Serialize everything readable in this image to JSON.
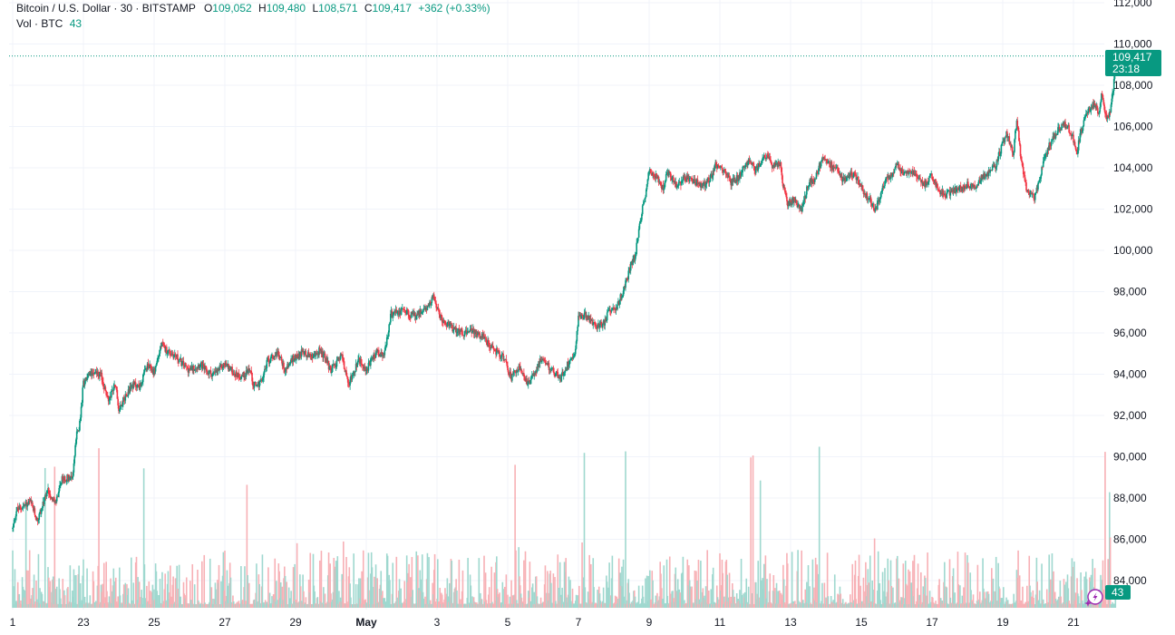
{
  "legend": {
    "title": "Bitcoin / U.S. Dollar · 30 · BITSTAMP",
    "o_label": "O",
    "o_value": "109,052",
    "h_label": "H",
    "h_value": "109,480",
    "l_label": "L",
    "l_value": "108,571",
    "c_label": "C",
    "c_value": "109,417",
    "change": "+362 (+0.33%)",
    "vol_label": "Vol · BTC",
    "vol_value": "43"
  },
  "price_tag": {
    "price": "109,417",
    "countdown": "23:18"
  },
  "volume_tag": "43",
  "colors": {
    "up": "#089981",
    "down": "#f23645",
    "vol_up": "#9fd8cf",
    "vol_down": "#f7b0b5",
    "grid": "#f0f3fa",
    "text": "#131722",
    "ai_icon": "#9c27b0"
  },
  "icons": {
    "ai_assistant": "sparkle-lightning-icon"
  },
  "chart_data": {
    "type": "candlestick",
    "symbol": "Bitcoin / U.S. Dollar",
    "interval": "30",
    "exchange": "BITSTAMP",
    "ylim": [
      82500,
      112000
    ],
    "y_ticks": [
      "112,000",
      "110,000",
      "108,000",
      "106,000",
      "104,000",
      "102,000",
      "100,000",
      "98,000",
      "96,000",
      "94,000",
      "92,000",
      "90,000",
      "88,000",
      "86,000",
      "84,000"
    ],
    "y_tick_values": [
      112000,
      110000,
      108000,
      106000,
      104000,
      102000,
      100000,
      98000,
      96000,
      94000,
      92000,
      90000,
      88000,
      86000,
      84000
    ],
    "x_ticks": [
      "1",
      "23",
      "25",
      "27",
      "29",
      "May",
      "3",
      "5",
      "7",
      "9",
      "11",
      "13",
      "15",
      "17",
      "19",
      "21"
    ],
    "x_tick_days": [
      0,
      2,
      4,
      6,
      8,
      10,
      12,
      14,
      16,
      18,
      20,
      22,
      24,
      26,
      28,
      30
    ],
    "x_days_range": [
      -0.05,
      30.4
    ],
    "bold_ticks": [
      "May"
    ],
    "grid": true,
    "last_price": 109417,
    "price_path": [
      [
        0.0,
        86500
      ],
      [
        0.1,
        87400
      ],
      [
        0.5,
        87800
      ],
      [
        0.7,
        86900
      ],
      [
        1.0,
        88400
      ],
      [
        1.2,
        87700
      ],
      [
        1.4,
        88900
      ],
      [
        1.7,
        89100
      ],
      [
        1.8,
        91000
      ],
      [
        1.9,
        91600
      ],
      [
        2.0,
        93600
      ],
      [
        2.3,
        94200
      ],
      [
        2.5,
        93900
      ],
      [
        2.7,
        92700
      ],
      [
        2.9,
        93600
      ],
      [
        3.0,
        92300
      ],
      [
        3.2,
        93000
      ],
      [
        3.4,
        93500
      ],
      [
        3.6,
        93400
      ],
      [
        3.8,
        94400
      ],
      [
        4.0,
        94100
      ],
      [
        4.2,
        95400
      ],
      [
        4.4,
        95100
      ],
      [
        4.6,
        94900
      ],
      [
        4.8,
        94500
      ],
      [
        5.0,
        94200
      ],
      [
        5.3,
        94500
      ],
      [
        5.5,
        94100
      ],
      [
        5.7,
        94000
      ],
      [
        6.0,
        94500
      ],
      [
        6.3,
        94000
      ],
      [
        6.5,
        93900
      ],
      [
        6.7,
        94300
      ],
      [
        6.8,
        93500
      ],
      [
        7.0,
        93500
      ],
      [
        7.2,
        94600
      ],
      [
        7.5,
        95100
      ],
      [
        7.7,
        94200
      ],
      [
        7.9,
        94700
      ],
      [
        8.2,
        95100
      ],
      [
        8.5,
        94800
      ],
      [
        8.7,
        95200
      ],
      [
        9.0,
        94200
      ],
      [
        9.3,
        94900
      ],
      [
        9.5,
        93500
      ],
      [
        9.8,
        94700
      ],
      [
        10.0,
        94200
      ],
      [
        10.3,
        95100
      ],
      [
        10.5,
        94800
      ],
      [
        10.7,
        96900
      ],
      [
        11.0,
        97100
      ],
      [
        11.4,
        96800
      ],
      [
        11.7,
        97200
      ],
      [
        11.9,
        97800
      ],
      [
        12.0,
        97100
      ],
      [
        12.2,
        96500
      ],
      [
        12.5,
        96200
      ],
      [
        12.8,
        96000
      ],
      [
        13.0,
        96100
      ],
      [
        13.3,
        95800
      ],
      [
        13.6,
        95200
      ],
      [
        13.9,
        94800
      ],
      [
        14.0,
        94200
      ],
      [
        14.1,
        93800
      ],
      [
        14.3,
        94300
      ],
      [
        14.6,
        93500
      ],
      [
        14.9,
        94600
      ],
      [
        15.1,
        94500
      ],
      [
        15.3,
        94100
      ],
      [
        15.5,
        93800
      ],
      [
        15.7,
        94500
      ],
      [
        15.9,
        95100
      ],
      [
        16.0,
        96800
      ],
      [
        16.2,
        96900
      ],
      [
        16.5,
        96300
      ],
      [
        16.7,
        96400
      ],
      [
        16.9,
        97200
      ],
      [
        17.1,
        97300
      ],
      [
        17.3,
        98200
      ],
      [
        17.5,
        99400
      ],
      [
        17.6,
        99700
      ],
      [
        17.8,
        101900
      ],
      [
        17.9,
        102800
      ],
      [
        18.0,
        103900
      ],
      [
        18.2,
        103600
      ],
      [
        18.4,
        103000
      ],
      [
        18.5,
        103900
      ],
      [
        18.8,
        103100
      ],
      [
        19.0,
        103500
      ],
      [
        19.3,
        103400
      ],
      [
        19.5,
        103100
      ],
      [
        19.7,
        103400
      ],
      [
        19.9,
        104200
      ],
      [
        20.1,
        103900
      ],
      [
        20.3,
        103300
      ],
      [
        20.5,
        103500
      ],
      [
        20.8,
        104400
      ],
      [
        21.0,
        103900
      ],
      [
        21.3,
        104600
      ],
      [
        21.5,
        104100
      ],
      [
        21.7,
        104200
      ],
      [
        21.8,
        103000
      ],
      [
        21.9,
        102300
      ],
      [
        22.1,
        102400
      ],
      [
        22.3,
        101900
      ],
      [
        22.5,
        103200
      ],
      [
        22.7,
        103500
      ],
      [
        22.9,
        104500
      ],
      [
        23.1,
        104200
      ],
      [
        23.3,
        103900
      ],
      [
        23.5,
        103400
      ],
      [
        23.7,
        103800
      ],
      [
        23.9,
        103400
      ],
      [
        24.1,
        102700
      ],
      [
        24.3,
        102300
      ],
      [
        24.4,
        101900
      ],
      [
        24.6,
        103100
      ],
      [
        24.8,
        103600
      ],
      [
        25.0,
        104100
      ],
      [
        25.2,
        103700
      ],
      [
        25.4,
        103900
      ],
      [
        25.6,
        103400
      ],
      [
        25.8,
        103200
      ],
      [
        26.0,
        103600
      ],
      [
        26.2,
        102900
      ],
      [
        26.4,
        102700
      ],
      [
        26.6,
        102900
      ],
      [
        26.8,
        103000
      ],
      [
        27.0,
        103200
      ],
      [
        27.2,
        103100
      ],
      [
        27.4,
        103500
      ],
      [
        27.6,
        103800
      ],
      [
        27.8,
        104100
      ],
      [
        28.0,
        105200
      ],
      [
        28.1,
        105700
      ],
      [
        28.3,
        104700
      ],
      [
        28.4,
        106500
      ],
      [
        28.5,
        104600
      ],
      [
        28.6,
        103600
      ],
      [
        28.7,
        102800
      ],
      [
        28.9,
        102500
      ],
      [
        29.0,
        103200
      ],
      [
        29.2,
        104600
      ],
      [
        29.4,
        105400
      ],
      [
        29.6,
        105900
      ],
      [
        29.8,
        106100
      ],
      [
        30.0,
        105400
      ],
      [
        30.1,
        104700
      ],
      [
        30.2,
        105700
      ],
      [
        30.4,
        106700
      ],
      [
        30.6,
        107200
      ],
      [
        30.7,
        106500
      ],
      [
        30.8,
        107600
      ],
      [
        30.9,
        106600
      ],
      [
        31.0,
        106400
      ],
      [
        31.1,
        107400
      ],
      [
        31.2,
        109417
      ]
    ]
  }
}
